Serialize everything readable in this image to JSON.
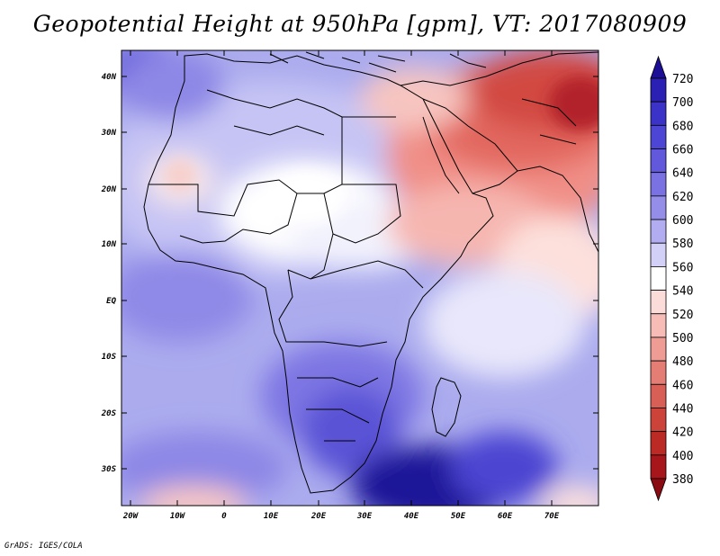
{
  "title": "Geopotential Height at 950hPa [gpm], VT: 2017080909",
  "credit": "GrADS: IGES/COLA",
  "map": {
    "region": "Africa and Middle East",
    "field": "Geopotential Height",
    "level": "950hPa",
    "units": "gpm",
    "lon_range": [
      -23,
      80
    ],
    "lat_range": [
      -36,
      45
    ],
    "lat_ticks": [
      "40N",
      "30N",
      "20N",
      "10N",
      "EQ",
      "10S",
      "20S",
      "30S"
    ],
    "lon_ticks": [
      "20W",
      "10W",
      "0",
      "10E",
      "20E",
      "30E",
      "40E",
      "50E",
      "60E",
      "70E"
    ]
  },
  "colorbar": {
    "levels": [
      "720",
      "700",
      "680",
      "660",
      "640",
      "620",
      "600",
      "580",
      "560",
      "540",
      "520",
      "500",
      "480",
      "460",
      "440",
      "420",
      "400",
      "380"
    ],
    "colors": [
      "#1c0f96",
      "#2a20b4",
      "#3b33c8",
      "#4d46d4",
      "#6158dc",
      "#7a72e3",
      "#948ee9",
      "#b1adf0",
      "#d2d0f7",
      "#ffffff",
      "#fcdcd8",
      "#f7bcb6",
      "#ee9c94",
      "#e47d74",
      "#d85f56",
      "#cc433a",
      "#bc2a25",
      "#a7161a",
      "#8a0b12"
    ]
  }
}
